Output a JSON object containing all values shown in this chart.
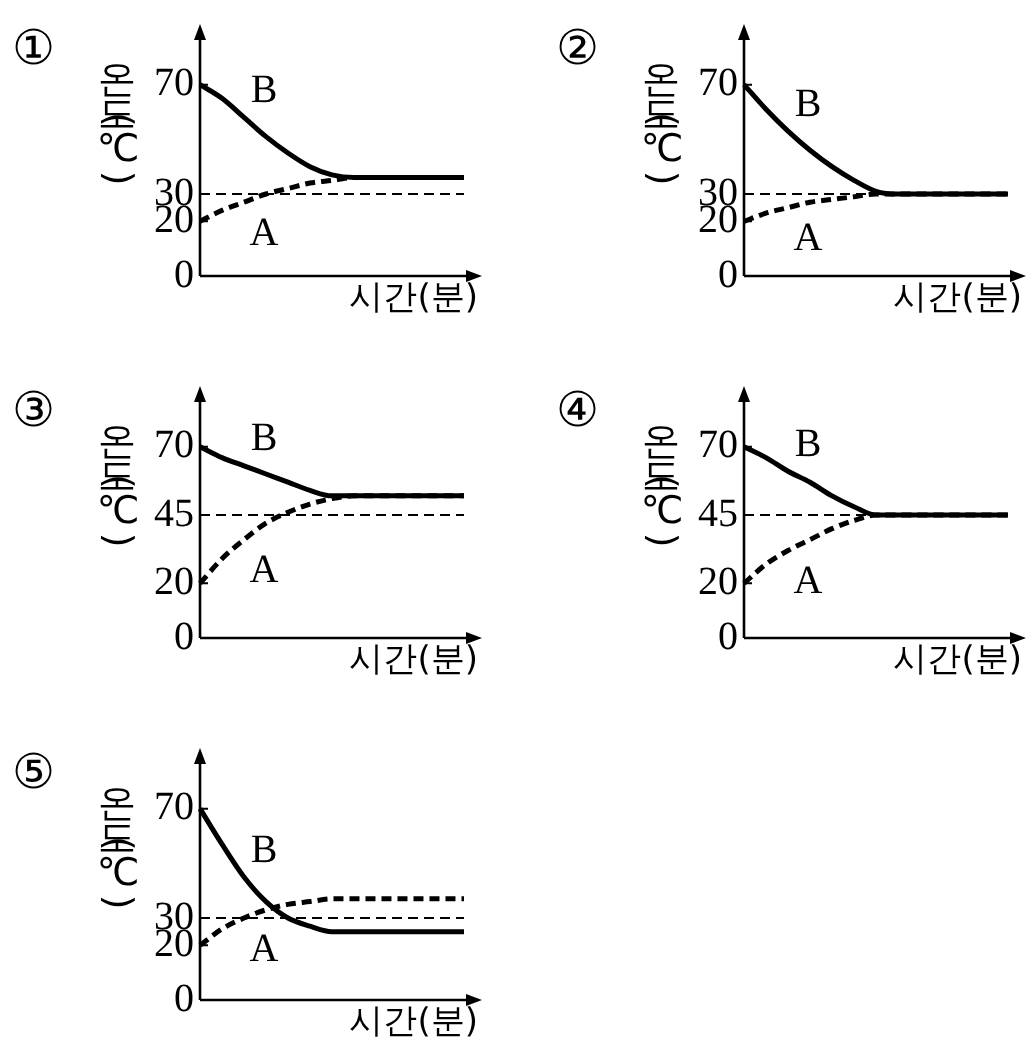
{
  "chart_data": [
    {
      "type": "line",
      "title": "①",
      "xlabel": "시간(분)",
      "ylabel": "온도(℃)",
      "categories": [
        null,
        null,
        null,
        null,
        null,
        null,
        null,
        null,
        null,
        null,
        null,
        null,
        null
      ],
      "ylim": [
        0,
        90
      ],
      "yticks": [
        0,
        20,
        30,
        70
      ],
      "tick_labels": "y",
      "marker": "none",
      "series": [
        {
          "name": "A",
          "color": "#000000",
          "line_style": "dashed",
          "values": [
            20,
            24,
            27,
            30,
            32,
            34,
            35,
            36,
            36,
            36,
            36,
            36,
            36
          ]
        },
        {
          "name": "B",
          "color": "#000000",
          "line_style": "solid",
          "values": [
            70,
            65,
            58,
            51,
            45,
            40,
            37,
            36,
            36,
            36,
            36,
            36,
            36
          ]
        }
      ],
      "ref_lines": [
        {
          "axis": "y",
          "value": 30,
          "color": "#000000",
          "line_style": "dashed"
        }
      ]
    },
    {
      "type": "line",
      "title": "②",
      "xlabel": "시간(분)",
      "ylabel": "온도(℃)",
      "categories": [
        null,
        null,
        null,
        null,
        null,
        null,
        null,
        null,
        null,
        null,
        null,
        null,
        null
      ],
      "ylim": [
        0,
        90
      ],
      "yticks": [
        0,
        20,
        30,
        70
      ],
      "tick_labels": "y",
      "marker": "none",
      "series": [
        {
          "name": "A",
          "color": "#000000",
          "line_style": "dashed",
          "values": [
            20,
            23,
            25,
            27,
            28,
            29,
            30,
            30,
            30,
            30,
            30,
            30,
            30
          ]
        },
        {
          "name": "B",
          "color": "#000000",
          "line_style": "solid",
          "values": [
            70,
            61,
            53,
            46,
            40,
            35,
            31,
            30,
            30,
            30,
            30,
            30,
            30
          ]
        }
      ],
      "ref_lines": [
        {
          "axis": "y",
          "value": 30,
          "color": "#000000",
          "line_style": "dashed"
        }
      ]
    },
    {
      "type": "line",
      "title": "③",
      "xlabel": "시간(분)",
      "ylabel": "온도(℃)",
      "categories": [
        null,
        null,
        null,
        null,
        null,
        null,
        null,
        null,
        null,
        null,
        null,
        null,
        null
      ],
      "ylim": [
        0,
        90
      ],
      "yticks": [
        0,
        20,
        45,
        70
      ],
      "tick_labels": "y",
      "marker": "none",
      "series": [
        {
          "name": "A",
          "color": "#000000",
          "line_style": "dashed",
          "values": [
            20,
            29,
            36,
            42,
            46,
            49,
            51,
            52,
            52,
            52,
            52,
            52,
            52
          ]
        },
        {
          "name": "B",
          "color": "#000000",
          "line_style": "solid",
          "values": [
            70,
            66,
            63,
            60,
            57,
            54,
            52,
            52,
            52,
            52,
            52,
            52,
            52
          ]
        }
      ],
      "ref_lines": [
        {
          "axis": "y",
          "value": 45,
          "color": "#000000",
          "line_style": "dashed"
        }
      ]
    },
    {
      "type": "line",
      "title": "④",
      "xlabel": "시간(분)",
      "ylabel": "온도(℃)",
      "categories": [
        null,
        null,
        null,
        null,
        null,
        null,
        null,
        null,
        null,
        null,
        null,
        null,
        null
      ],
      "ylim": [
        0,
        90
      ],
      "yticks": [
        0,
        20,
        45,
        70
      ],
      "tick_labels": "y",
      "marker": "none",
      "series": [
        {
          "name": "A",
          "color": "#000000",
          "line_style": "dashed",
          "values": [
            20,
            27,
            32,
            36,
            40,
            43,
            45,
            45,
            45,
            45,
            45,
            45,
            45
          ]
        },
        {
          "name": "B",
          "color": "#000000",
          "line_style": "solid",
          "values": [
            70,
            66,
            61,
            57,
            52,
            48,
            45,
            45,
            45,
            45,
            45,
            45,
            45
          ]
        }
      ],
      "ref_lines": [
        {
          "axis": "y",
          "value": 45,
          "color": "#000000",
          "line_style": "dashed"
        }
      ]
    },
    {
      "type": "line",
      "title": "⑤",
      "xlabel": "시간(분)",
      "ylabel": "온도(℃)",
      "categories": [
        null,
        null,
        null,
        null,
        null,
        null,
        null,
        null,
        null,
        null,
        null,
        null,
        null
      ],
      "ylim": [
        0,
        90
      ],
      "yticks": [
        0,
        20,
        30,
        70
      ],
      "tick_labels": "y",
      "marker": "none",
      "series": [
        {
          "name": "A",
          "color": "#000000",
          "line_style": "dashed",
          "values": [
            20,
            26,
            30,
            33,
            35,
            36,
            37,
            37,
            37,
            37,
            37,
            37,
            37
          ]
        },
        {
          "name": "B",
          "color": "#000000",
          "line_style": "solid",
          "values": [
            70,
            57,
            45,
            36,
            30,
            27,
            25,
            25,
            25,
            25,
            25,
            25,
            25
          ]
        }
      ],
      "ref_lines": [
        {
          "axis": "y",
          "value": 30,
          "color": "#000000",
          "line_style": "dashed"
        }
      ]
    }
  ]
}
